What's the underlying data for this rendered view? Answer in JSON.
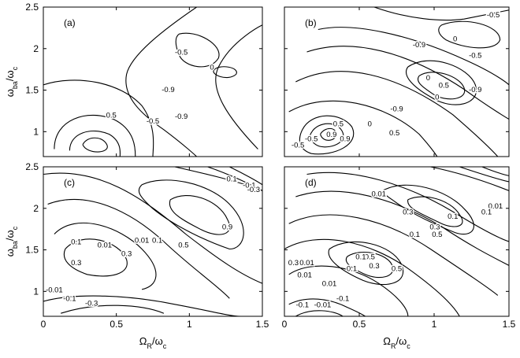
{
  "chart_data": [
    {
      "type": "contour",
      "panel_label": "(a)",
      "xlabel": "",
      "ylabel": "ω_ba/ω_c",
      "xlim": [
        0,
        1.5
      ],
      "ylim": [
        0.7,
        2.5
      ],
      "x_ticks": [],
      "y_ticks": [
        "1",
        "1.5",
        "2",
        "2.5"
      ],
      "contour_level_labels": [
        "0",
        "-0.5",
        "-0.9",
        "0.5",
        "-0.5",
        "-0.9"
      ],
      "color": "#000000"
    },
    {
      "type": "contour",
      "panel_label": "(b)",
      "xlabel": "",
      "ylabel": "",
      "xlim": [
        0,
        1.5
      ],
      "ylim": [
        0.7,
        2.5
      ],
      "x_ticks": [],
      "y_ticks": [],
      "contour_level_labels": [
        "-0.5",
        "0",
        "-0.9",
        "-0.5",
        "0",
        "0.5",
        "-0.9",
        "0.5",
        "0.9",
        "-0.5",
        "0.9",
        "0",
        "0.5",
        "-0.5",
        "-0.9",
        "0"
      ],
      "color": "#000000"
    },
    {
      "type": "contour",
      "panel_label": "(c)",
      "xlabel": "Ω_R/ω_c",
      "ylabel": "ω_ba/ω_c",
      "xlim": [
        0,
        1.5
      ],
      "ylim": [
        0.7,
        2.5
      ],
      "x_ticks": [
        "0",
        "0.5",
        "1",
        "1.5"
      ],
      "y_ticks": [
        "1",
        "1.5",
        "2",
        "2.5"
      ],
      "contour_level_labels": [
        "0.1",
        "-0.1",
        "-0.3",
        "0.9",
        "0.01",
        "0.01",
        "0.1",
        "0.3",
        "0.5",
        "0.1",
        "0.3",
        "-0.01",
        "-0.1",
        "-0.3"
      ],
      "color": "#000000"
    },
    {
      "type": "contour",
      "panel_label": "(d)",
      "xlabel": "Ω_R/ω_c",
      "ylabel": "",
      "xlim": [
        0,
        1.5
      ],
      "ylim": [
        0.7,
        2.5
      ],
      "x_ticks": [
        "0",
        "0.5",
        "1",
        "1.5"
      ],
      "y_ticks": [],
      "contour_level_labels": [
        "0.01",
        "0.1",
        "0.3",
        "0.5",
        "0.01",
        "0.1",
        "0.3",
        "0.5",
        "0.1",
        "0.3",
        "0.01",
        "0.01",
        "0.1",
        "0.3",
        "0.5",
        "0.01",
        "0.1",
        "-0.1",
        "-0.01",
        "-0.1"
      ],
      "color": "#000000"
    }
  ]
}
